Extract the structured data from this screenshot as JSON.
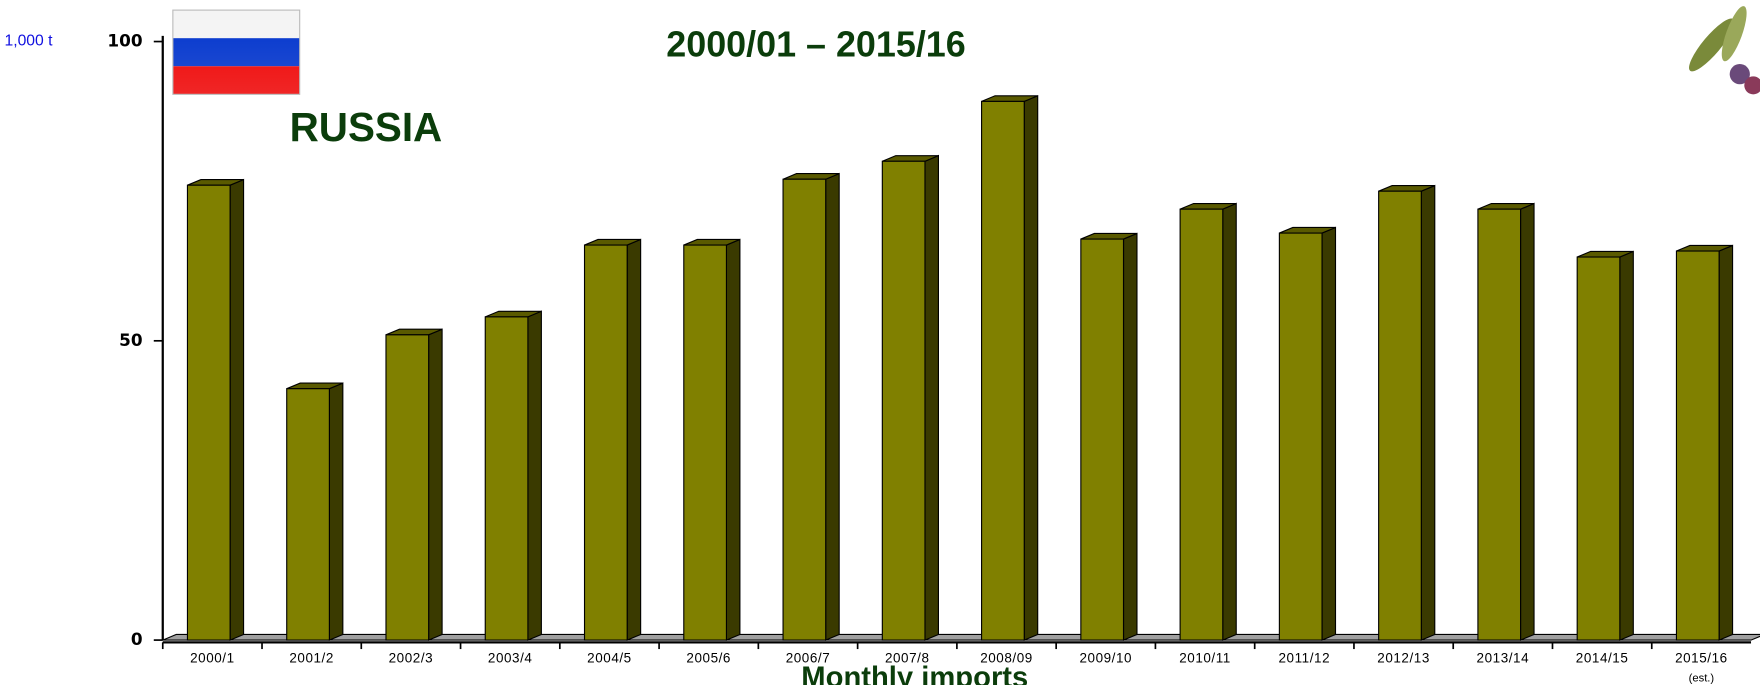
{
  "chart_data": {
    "type": "bar3d",
    "subtitle": "2000/01 – 2015/16",
    "country": "RUSSIA",
    "unit_label": "1,000 t",
    "xlabel": "Monthly imports",
    "annotation": "(est.)",
    "categories": [
      "2000/1",
      "2001/2",
      "2002/3",
      "2003/4",
      "2004/5",
      "2005/6",
      "2006/7",
      "2007/8",
      "2008/09",
      "2009/10",
      "2010/11",
      "2011/12",
      "2012/13",
      "2013/14",
      "2014/15",
      "2015/16"
    ],
    "values": [
      76,
      42,
      51,
      54,
      66,
      66,
      77,
      80,
      90,
      67,
      72,
      68,
      75,
      72,
      64,
      65
    ],
    "color": "#808000",
    "ylim": [
      0,
      100
    ],
    "yticks": [
      0,
      50,
      100
    ]
  }
}
